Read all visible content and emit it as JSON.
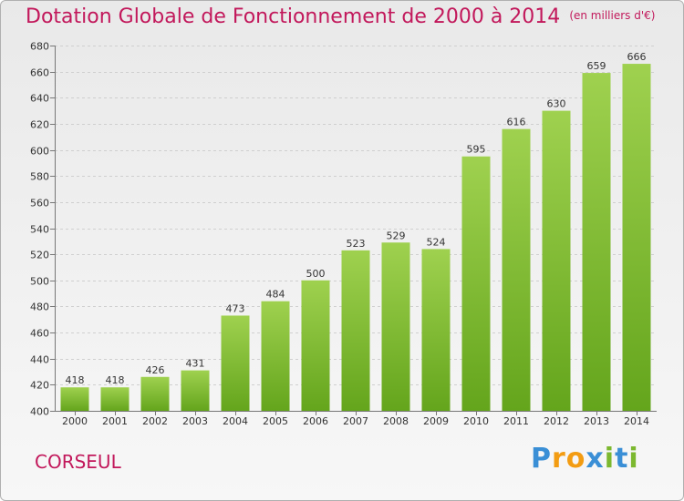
{
  "chart_data": {
    "type": "bar",
    "title": "Dotation Globale de Fonctionnement de 2000 à 2014",
    "subtitle": "(en milliers d'€)",
    "categories": [
      "2000",
      "2001",
      "2002",
      "2003",
      "2004",
      "2005",
      "2006",
      "2007",
      "2008",
      "2009",
      "2010",
      "2011",
      "2012",
      "2013",
      "2014"
    ],
    "values": [
      418,
      418,
      426,
      431,
      473,
      484,
      500,
      523,
      529,
      524,
      595,
      616,
      630,
      659,
      666
    ],
    "ylim": [
      400,
      680
    ],
    "yticks": [
      400,
      420,
      440,
      460,
      480,
      500,
      520,
      540,
      560,
      580,
      600,
      620,
      640,
      660,
      680
    ],
    "grid": true,
    "xlabel": "",
    "ylabel": "",
    "bar_color": "#7dbb2e"
  },
  "commune": "CORSEUL",
  "logo": {
    "text": "Proxiti",
    "letters": [
      {
        "ch": "P",
        "color": "#3a8fd6"
      },
      {
        "ch": "r",
        "color": "#f39c12"
      },
      {
        "ch": "o",
        "color": "#f39c12"
      },
      {
        "ch": "x",
        "color": "#3a8fd6"
      },
      {
        "ch": "i",
        "color": "#7cb82f"
      },
      {
        "ch": "t",
        "color": "#3a8fd6"
      },
      {
        "ch": "i",
        "color": "#7cb82f"
      }
    ]
  }
}
